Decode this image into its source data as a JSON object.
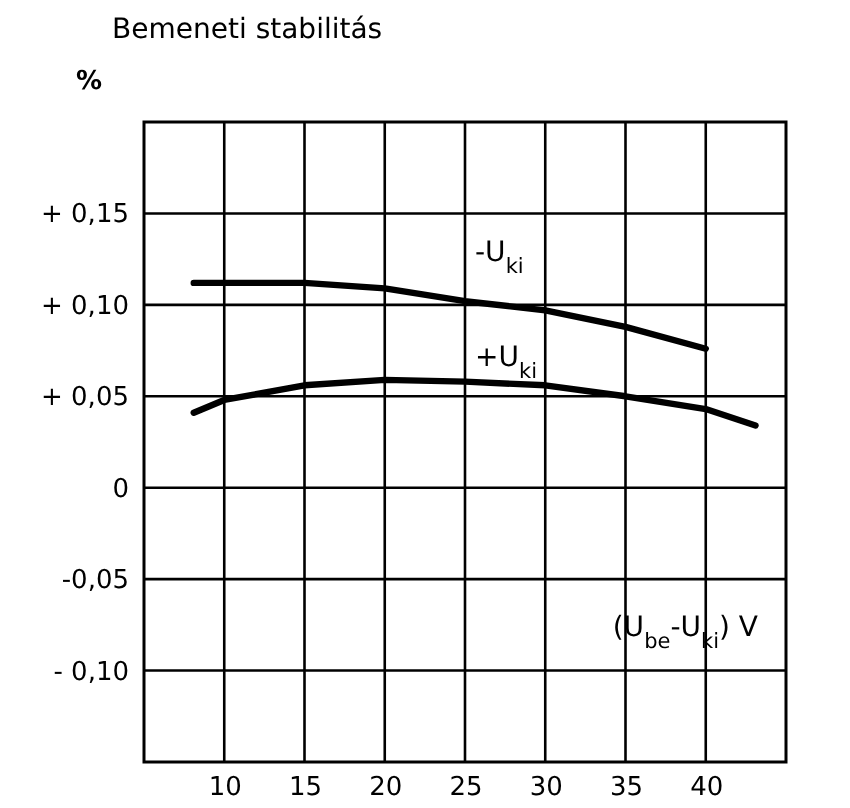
{
  "chart_data": {
    "type": "line",
    "title": "Bemeneti stabilitás",
    "ylabel": "%",
    "xlabel": "(U$_{be}$-U$_{ki}$)  V",
    "xlim": [
      5,
      45
    ],
    "xticks": [
      10,
      15,
      20,
      25,
      30,
      35,
      40
    ],
    "ylim": [
      -0.15,
      0.2
    ],
    "yticks": [
      {
        "value": -0.1,
        "label": "- 0,10"
      },
      {
        "value": -0.05,
        "label": "-0,05"
      },
      {
        "value": 0,
        "label": "0"
      },
      {
        "value": 0.05,
        "label": "+ 0,05"
      },
      {
        "value": 0.1,
        "label": "+ 0,10"
      },
      {
        "value": 0.15,
        "label": "+ 0,15"
      }
    ],
    "grid": true,
    "line_style": "solid",
    "series": [
      {
        "name": "-U$_{ki}$",
        "color": "#000000",
        "x": [
          8.1,
          10,
          15,
          20,
          25,
          30,
          35,
          40
        ],
        "values": [
          0.112,
          0.112,
          0.112,
          0.109,
          0.102,
          0.097,
          0.088,
          0.076
        ]
      },
      {
        "name": "+U$_{ki}$",
        "color": "#000000",
        "x": [
          8.1,
          10,
          15,
          20,
          25,
          30,
          35,
          40,
          43.1
        ],
        "values": [
          0.041,
          0.048,
          0.056,
          0.059,
          0.058,
          0.056,
          0.05,
          0.043,
          0.034
        ]
      }
    ]
  }
}
